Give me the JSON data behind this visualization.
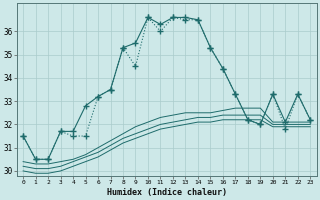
{
  "xlabel": "Humidex (Indice chaleur)",
  "background_color": "#cde8e8",
  "grid_color": "#b8d8d8",
  "line_color": "#1e6b6b",
  "x_ticks": [
    0,
    1,
    2,
    3,
    4,
    5,
    6,
    7,
    8,
    9,
    10,
    11,
    12,
    13,
    14,
    15,
    16,
    17,
    18,
    19,
    20,
    21,
    22,
    23
  ],
  "ylim": [
    29.8,
    37.2
  ],
  "xlim": [
    -0.5,
    23.5
  ],
  "yticks": [
    30,
    31,
    32,
    33,
    34,
    35,
    36
  ],
  "series1": [
    31.5,
    30.5,
    30.5,
    31.7,
    31.7,
    32.8,
    33.2,
    33.5,
    35.3,
    35.5,
    36.6,
    36.3,
    36.6,
    36.6,
    36.5,
    35.3,
    34.4,
    33.3,
    32.2,
    32.0,
    33.3,
    32.1,
    33.3,
    32.2
  ],
  "series2": [
    31.5,
    30.5,
    30.5,
    31.7,
    31.5,
    31.5,
    33.2,
    33.5,
    35.3,
    34.5,
    36.6,
    36.0,
    36.6,
    36.5,
    36.5,
    35.3,
    34.4,
    33.3,
    32.2,
    32.0,
    33.3,
    31.8,
    33.3,
    32.2
  ],
  "series3": [
    30.4,
    30.3,
    30.3,
    30.4,
    30.5,
    30.7,
    31.0,
    31.3,
    31.6,
    31.9,
    32.1,
    32.3,
    32.4,
    32.5,
    32.5,
    32.5,
    32.6,
    32.7,
    32.7,
    32.7,
    32.1,
    32.1,
    32.1,
    32.1
  ],
  "series4": [
    30.2,
    30.1,
    30.1,
    30.2,
    30.4,
    30.6,
    30.8,
    31.1,
    31.4,
    31.6,
    31.8,
    32.0,
    32.1,
    32.2,
    32.3,
    32.3,
    32.4,
    32.4,
    32.4,
    32.4,
    32.0,
    32.0,
    32.0,
    32.0
  ],
  "series5": [
    30.0,
    29.9,
    29.9,
    30.0,
    30.2,
    30.4,
    30.6,
    30.9,
    31.2,
    31.4,
    31.6,
    31.8,
    31.9,
    32.0,
    32.1,
    32.1,
    32.2,
    32.2,
    32.2,
    32.2,
    31.9,
    31.9,
    31.9,
    31.9
  ]
}
